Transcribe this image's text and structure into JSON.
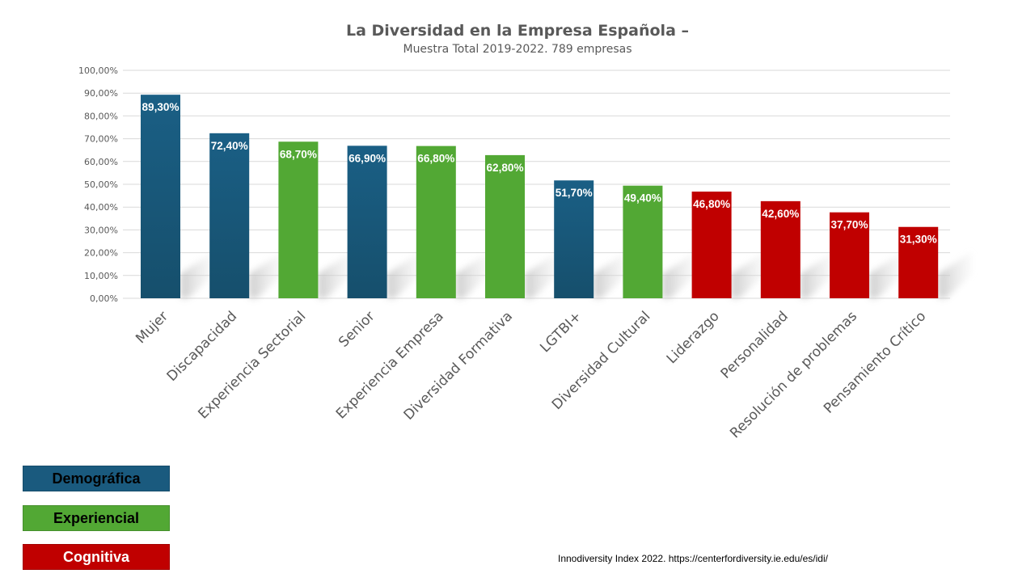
{
  "chart_data": {
    "type": "bar",
    "title": "La Diversidad en la Empresa Española –",
    "subtitle": "Muestra Total  2019-2022.  789 empresas",
    "xlabel": "",
    "ylabel": "",
    "ylim": [
      0,
      100
    ],
    "yticks": [
      0,
      10,
      20,
      30,
      40,
      50,
      60,
      70,
      80,
      90,
      100
    ],
    "ytick_labels": [
      "0,00%",
      "10,00%",
      "20,00%",
      "30,00%",
      "40,00%",
      "50,00%",
      "60,00%",
      "70,00%",
      "80,00%",
      "90,00%",
      "100,00%"
    ],
    "grid": true,
    "categories": [
      "Mujer",
      "Discapacidad",
      "Experiencia Sectorial",
      "Senior",
      "Experiencia Empresa",
      "Diversidad Formativa",
      "LGTBI+",
      "Diversidad Cultural",
      "Liderazgo",
      "Personalidad",
      "Resolución de problemas",
      "Pensamiento Crítico"
    ],
    "values": [
      89.3,
      72.4,
      68.7,
      66.9,
      66.8,
      62.8,
      51.7,
      49.4,
      46.8,
      42.6,
      37.7,
      31.3
    ],
    "data_labels": [
      "89,30%",
      "72,40%",
      "68,70%",
      "66,90%",
      "66,80%",
      "62,80%",
      "51,70%",
      "49,40%",
      "46,80%",
      "42,60%",
      "37,70%",
      "31,30%"
    ],
    "groups": [
      "Demográfica",
      "Demográfica",
      "Experiencial",
      "Demográfica",
      "Experiencial",
      "Experiencial",
      "Demográfica",
      "Experiencial",
      "Cognitiva",
      "Cognitiva",
      "Cognitiva",
      "Cognitiva"
    ],
    "legend": {
      "placement": "bottom-left",
      "entries": [
        {
          "label": "Demográfica",
          "color": "#1a5a7e",
          "text_color": "#000000"
        },
        {
          "label": "Experiencial",
          "color": "#52a834",
          "text_color": "#000000"
        },
        {
          "label": "Cognitiva",
          "color": "#c00000",
          "text_color": "#ffffff"
        }
      ]
    },
    "group_colors": {
      "Demográfica": "#1a5a7e",
      "Experiencial": "#52a834",
      "Cognitiva": "#c00000"
    }
  },
  "source_note": "Innodiversity Index 2022. https://centerfordiversity.ie.edu/es/idi/"
}
